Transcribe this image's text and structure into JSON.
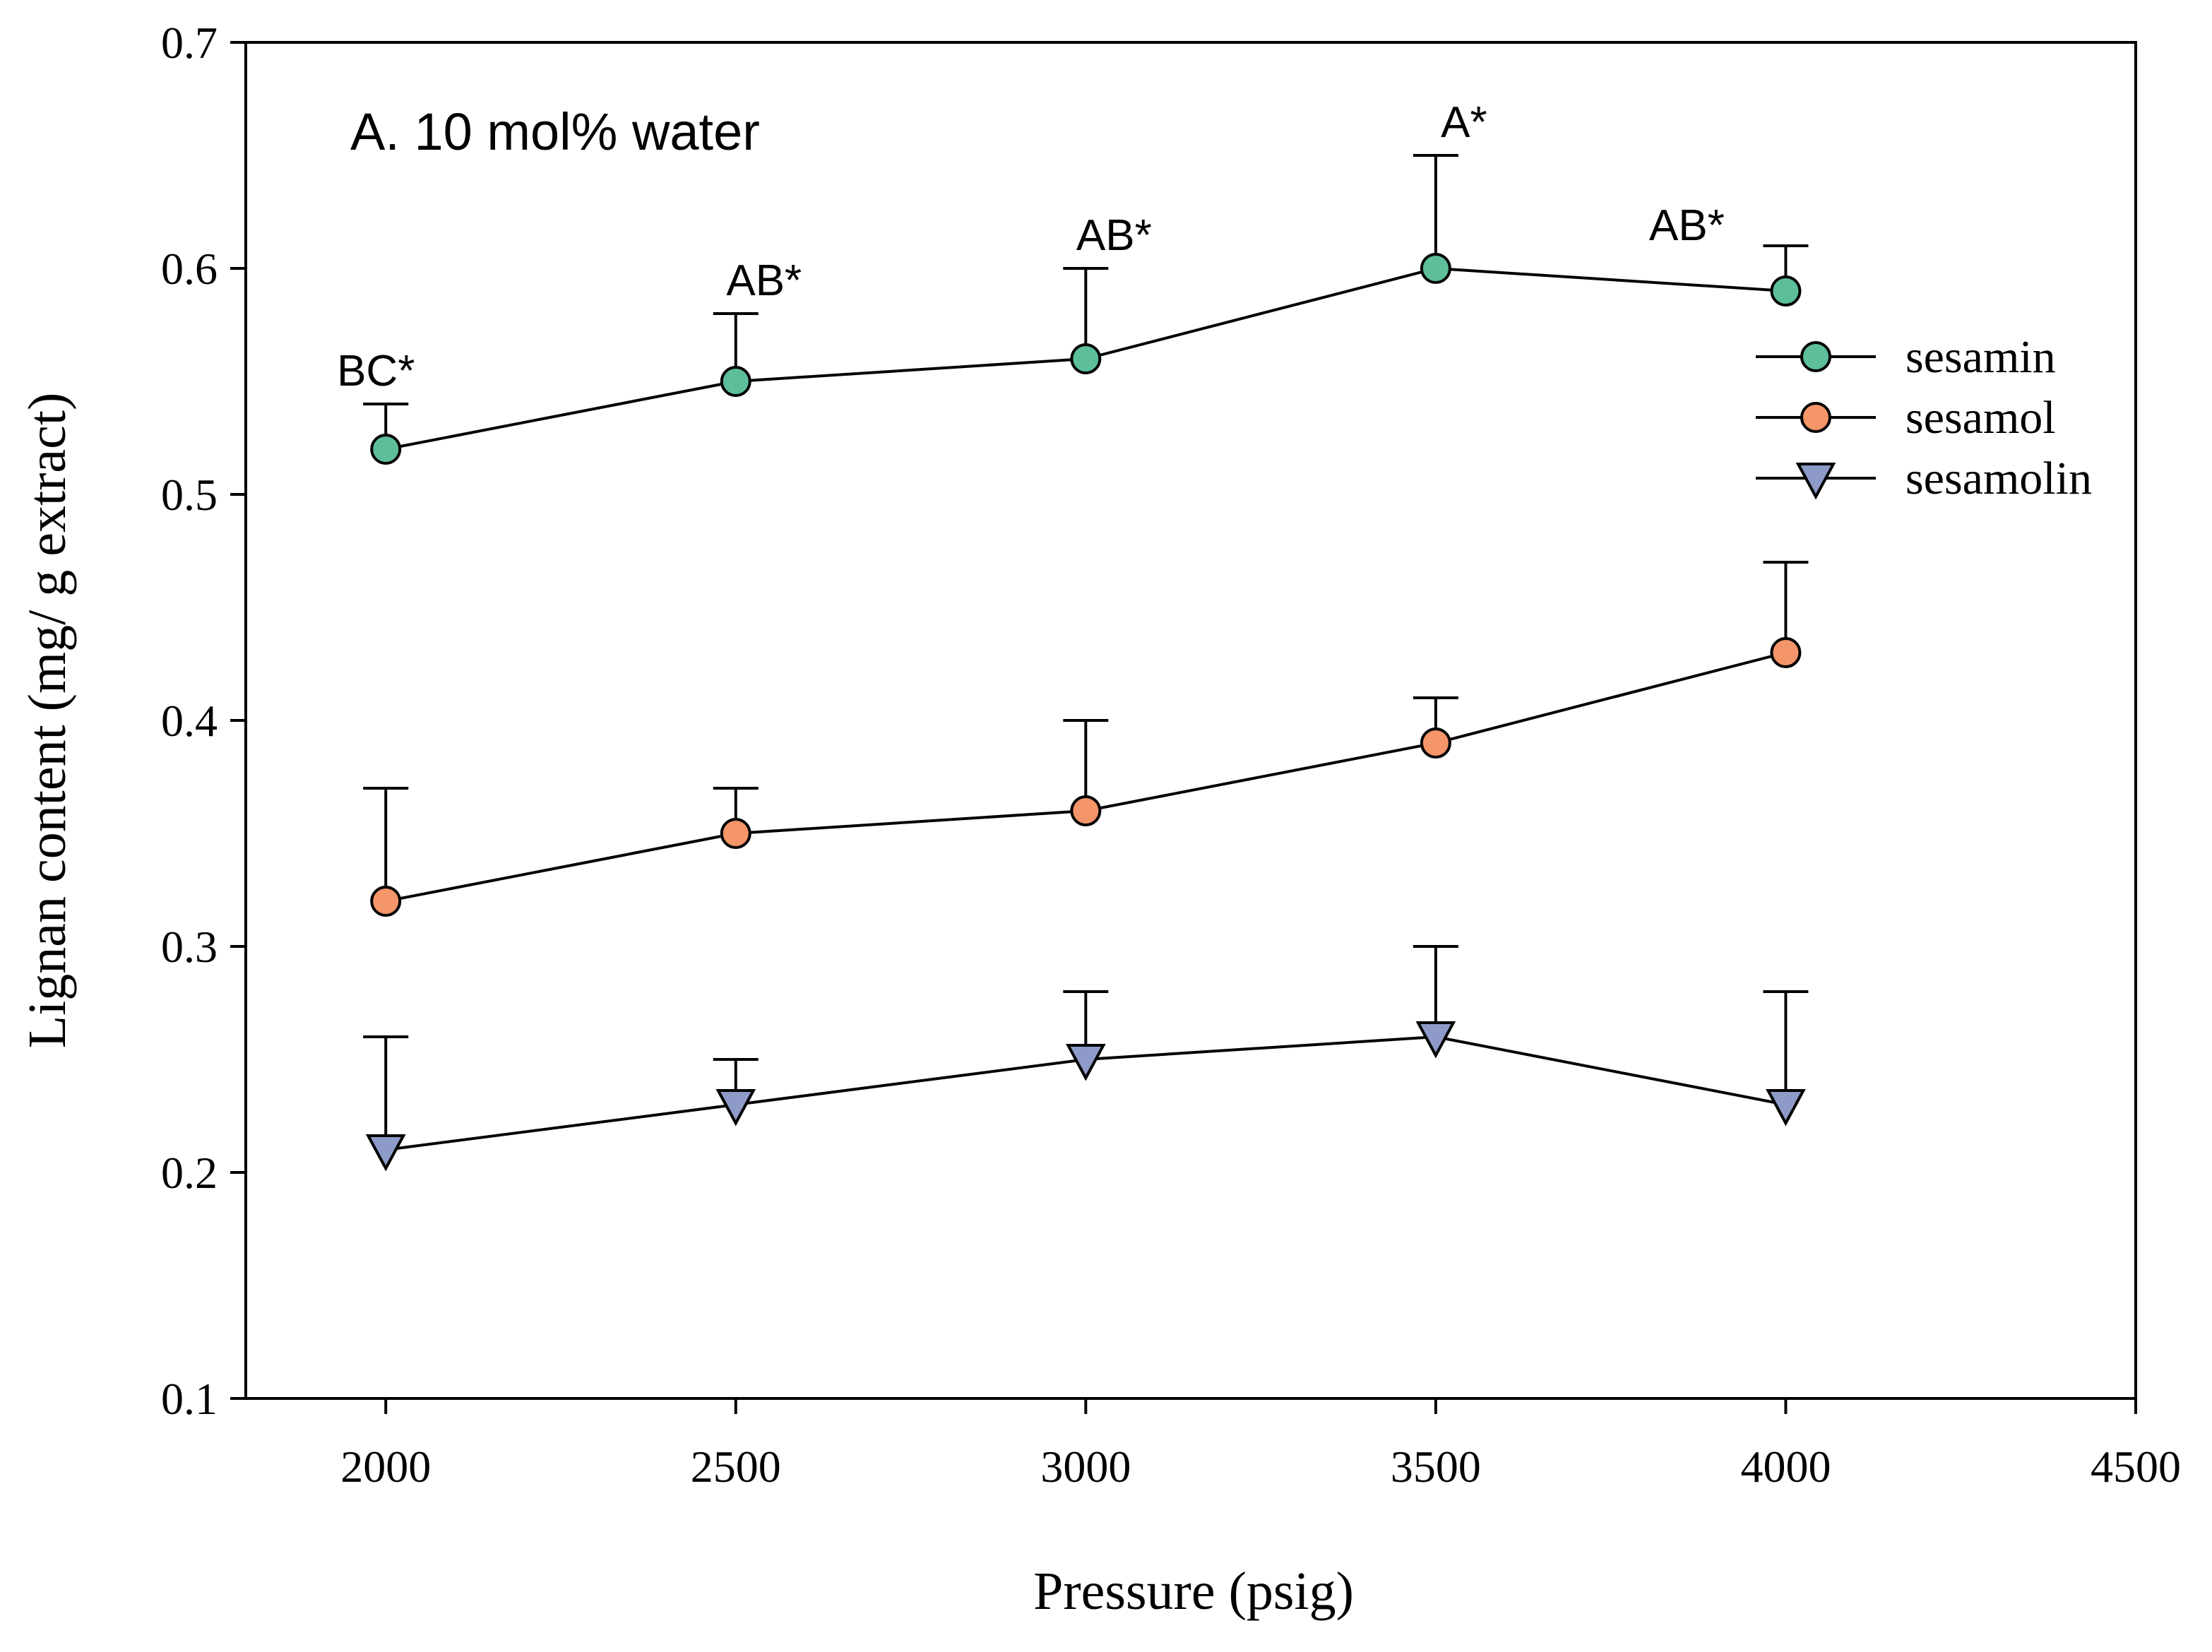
{
  "chart_data": {
    "type": "line",
    "panel_label": "A. 10 mol% water",
    "xlabel": "Pressure (psig)",
    "ylabel": "Lignan content (mg/ g extract)",
    "xlim": [
      1800,
      4500
    ],
    "ylim": [
      0.1,
      0.7
    ],
    "x_ticks": [
      2000,
      2500,
      3000,
      3500,
      4000,
      4500
    ],
    "x_tick_labels": [
      "2000",
      "2500",
      "3000",
      "3500",
      "4000",
      "4500"
    ],
    "y_ticks": [
      0.1,
      0.2,
      0.3,
      0.4,
      0.5,
      0.6,
      0.7
    ],
    "y_tick_labels": [
      "0.1",
      "0.2",
      "0.3",
      "0.4",
      "0.5",
      "0.6",
      "0.7"
    ],
    "grid": false,
    "legend_position": "top-right",
    "x": [
      2000,
      2500,
      3000,
      3500,
      4000
    ],
    "series": [
      {
        "name": "sesamin",
        "marker": "circle",
        "color": "#5dbf9a",
        "values": [
          0.52,
          0.55,
          0.56,
          0.6,
          0.59
        ],
        "error_upper": [
          0.54,
          0.58,
          0.6,
          0.65,
          0.61
        ],
        "annotations": [
          "BC*",
          "AB*",
          "AB*",
          "A*",
          "AB*"
        ]
      },
      {
        "name": "sesamol",
        "marker": "circle",
        "color": "#f4956a",
        "values": [
          0.32,
          0.35,
          0.36,
          0.39,
          0.43
        ],
        "error_upper": [
          0.37,
          0.37,
          0.4,
          0.41,
          0.47
        ]
      },
      {
        "name": "sesamolin",
        "marker": "triangle-down",
        "color": "#8e9bc9",
        "values": [
          0.21,
          0.23,
          0.25,
          0.26,
          0.23
        ],
        "error_upper": [
          0.26,
          0.25,
          0.28,
          0.3,
          0.28
        ]
      }
    ]
  }
}
